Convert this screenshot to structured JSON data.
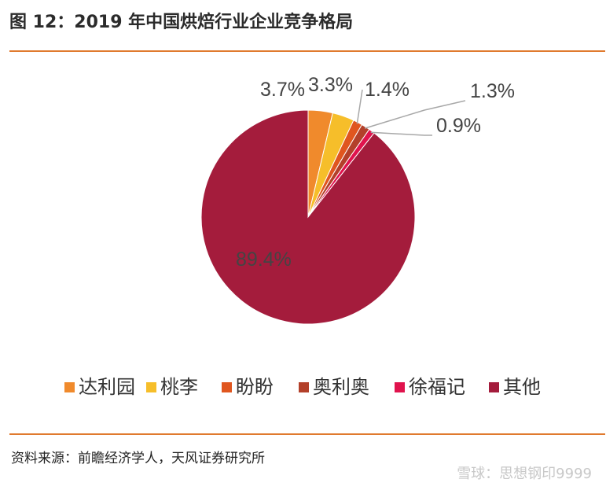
{
  "header": {
    "title": "图 12：2019 年中国烘焙行业企业竞争格局"
  },
  "footer": {
    "source": "资料来源：前瞻经济学人，天风证券研究所",
    "watermark": "雪球：思想钢印9999"
  },
  "colors": {
    "rule": "#e07a2e",
    "series": [
      "#f08a2c",
      "#f6be2a",
      "#e0561f",
      "#b3402a",
      "#e0134d",
      "#a41c3c"
    ]
  },
  "chart_data": {
    "type": "pie",
    "title": "",
    "categories": [
      "达利园",
      "桃李",
      "盼盼",
      "奥利奥",
      "徐福记",
      "其他"
    ],
    "values": [
      3.7,
      3.3,
      1.4,
      1.3,
      0.9,
      89.4
    ],
    "labels": [
      "3.7%",
      "3.3%",
      "1.4%",
      "1.3%",
      "0.9%",
      "89.4%"
    ],
    "start": "12 o'clock, clockwise",
    "legend": "bottom",
    "grid": false
  }
}
